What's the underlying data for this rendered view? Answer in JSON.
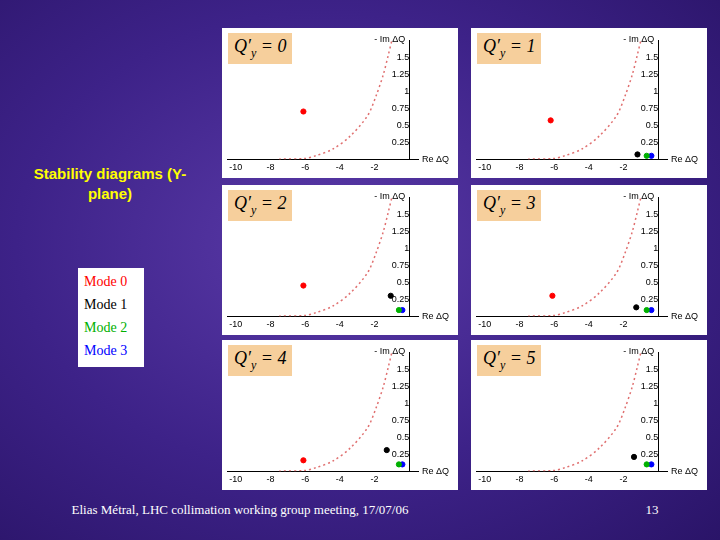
{
  "title": "Stability diagrams (Y-plane)",
  "footer": "Elias Métral, LHC collimation working group meeting, 17/07/06",
  "page_number": 13,
  "chart_data": [
    {
      "type": "scatter",
      "title": "Q′y = 0",
      "xlabel": "Re ΔQ",
      "ylabel": "- Im ΔQ",
      "xlim": [
        -10.5,
        0.5
      ],
      "ylim": [
        0,
        1.75
      ],
      "xticks": [
        -10,
        -8,
        -6,
        -4,
        -2
      ],
      "yticks": [
        0.25,
        0.5,
        0.75,
        1,
        1.25,
        1.5
      ],
      "grid": false,
      "series": [
        {
          "name": "Mode 0",
          "color": "#ff0000",
          "marker": "circle",
          "x": [
            -6.1
          ],
          "values": [
            0.7
          ]
        },
        {
          "name": "Mode 1",
          "color": "#000000",
          "marker": "circle",
          "x": [],
          "values": []
        },
        {
          "name": "Mode 2",
          "color": "#00b000",
          "marker": "circle",
          "x": [],
          "values": []
        },
        {
          "name": "Mode 3",
          "color": "#0000ff",
          "marker": "circle",
          "x": [],
          "values": []
        }
      ],
      "stability_curve": {
        "color": "#e07070",
        "line_style": "dotted",
        "x": [
          -7.5,
          -6,
          -5.4,
          -4.4,
          -3.4,
          -2.4,
          -1.9,
          -1.5,
          -1.2,
          -1.0
        ],
        "values": [
          0,
          0.01,
          0.05,
          0.15,
          0.34,
          0.64,
          0.94,
          1.24,
          1.54,
          1.75
        ]
      }
    },
    {
      "type": "scatter",
      "title": "Q′y = 1",
      "xlabel": "Re ΔQ",
      "ylabel": "- Im ΔQ",
      "xlim": [
        -10.5,
        0.5
      ],
      "ylim": [
        0,
        1.75
      ],
      "xticks": [
        -10,
        -8,
        -6,
        -4,
        -2
      ],
      "yticks": [
        0.25,
        0.5,
        0.75,
        1,
        1.25,
        1.5
      ],
      "grid": false,
      "series": [
        {
          "name": "Mode 0",
          "color": "#ff0000",
          "marker": "circle",
          "x": [
            -6.2
          ],
          "values": [
            0.57
          ]
        },
        {
          "name": "Mode 1",
          "color": "#000000",
          "marker": "circle",
          "x": [
            -1.2
          ],
          "values": [
            0.07
          ]
        },
        {
          "name": "Mode 2",
          "color": "#00b000",
          "marker": "circle",
          "x": [
            -0.67
          ],
          "values": [
            0.05
          ]
        },
        {
          "name": "Mode 3",
          "color": "#0000ff",
          "marker": "circle",
          "x": [
            -0.4
          ],
          "values": [
            0.05
          ]
        }
      ],
      "stability_curve": {
        "color": "#e07070",
        "line_style": "dotted",
        "x": [
          -7.5,
          -6,
          -5.4,
          -4.4,
          -3.4,
          -2.4,
          -1.9,
          -1.5,
          -1.2,
          -1.0
        ],
        "values": [
          0,
          0.01,
          0.05,
          0.15,
          0.34,
          0.64,
          0.94,
          1.24,
          1.54,
          1.75
        ]
      }
    },
    {
      "type": "scatter",
      "title": "Q′y = 2",
      "xlabel": "Re ΔQ",
      "ylabel": "- Im ΔQ",
      "xlim": [
        -10.5,
        0.5
      ],
      "ylim": [
        0,
        1.75
      ],
      "xticks": [
        -10,
        -8,
        -6,
        -4,
        -2
      ],
      "yticks": [
        0.25,
        0.5,
        0.75,
        1,
        1.25,
        1.5
      ],
      "grid": false,
      "series": [
        {
          "name": "Mode 0",
          "color": "#ff0000",
          "marker": "circle",
          "x": [
            -6.1
          ],
          "values": [
            0.45
          ]
        },
        {
          "name": "Mode 1",
          "color": "#000000",
          "marker": "circle",
          "x": [
            -1.07
          ],
          "values": [
            0.3
          ]
        },
        {
          "name": "Mode 2",
          "color": "#00b000",
          "marker": "circle",
          "x": [
            -0.6
          ],
          "values": [
            0.09
          ]
        },
        {
          "name": "Mode 3",
          "color": "#0000ff",
          "marker": "circle",
          "x": [
            -0.4
          ],
          "values": [
            0.09
          ]
        }
      ],
      "stability_curve": {
        "color": "#e07070",
        "line_style": "dotted",
        "x": [
          -7.5,
          -6,
          -5.4,
          -4.4,
          -3.4,
          -2.4,
          -1.9,
          -1.5,
          -1.2,
          -1.0
        ],
        "values": [
          0,
          0.01,
          0.05,
          0.15,
          0.34,
          0.64,
          0.94,
          1.24,
          1.54,
          1.75
        ]
      }
    },
    {
      "type": "scatter",
      "title": "Q′y = 3",
      "xlabel": "Re ΔQ",
      "ylabel": "- Im ΔQ",
      "xlim": [
        -10.5,
        0.5
      ],
      "ylim": [
        0,
        1.75
      ],
      "xticks": [
        -10,
        -8,
        -6,
        -4,
        -2
      ],
      "yticks": [
        0.25,
        0.5,
        0.75,
        1,
        1.25,
        1.5
      ],
      "grid": false,
      "series": [
        {
          "name": "Mode 0",
          "color": "#ff0000",
          "marker": "circle",
          "x": [
            -6.1
          ],
          "values": [
            0.3
          ]
        },
        {
          "name": "Mode 1",
          "color": "#000000",
          "marker": "circle",
          "x": [
            -1.27
          ],
          "values": [
            0.13
          ]
        },
        {
          "name": "Mode 2",
          "color": "#00b000",
          "marker": "circle",
          "x": [
            -0.67
          ],
          "values": [
            0.09
          ]
        },
        {
          "name": "Mode 3",
          "color": "#0000ff",
          "marker": "circle",
          "x": [
            -0.4
          ],
          "values": [
            0.09
          ]
        }
      ],
      "stability_curve": {
        "color": "#e07070",
        "line_style": "dotted",
        "x": [
          -7.5,
          -6,
          -5.4,
          -4.4,
          -3.4,
          -2.4,
          -1.9,
          -1.5,
          -1.2,
          -1.0
        ],
        "values": [
          0,
          0.01,
          0.05,
          0.15,
          0.34,
          0.64,
          0.94,
          1.24,
          1.54,
          1.75
        ]
      }
    },
    {
      "type": "scatter",
      "title": "Q′y = 4",
      "xlabel": "Re ΔQ",
      "ylabel": "- Im ΔQ",
      "xlim": [
        -10.5,
        0.5
      ],
      "ylim": [
        0,
        1.75
      ],
      "xticks": [
        -10,
        -8,
        -6,
        -4,
        -2
      ],
      "yticks": [
        0.25,
        0.5,
        0.75,
        1,
        1.25,
        1.5
      ],
      "grid": false,
      "series": [
        {
          "name": "Mode 0",
          "color": "#ff0000",
          "marker": "circle",
          "x": [
            -6.1
          ],
          "values": [
            0.16
          ]
        },
        {
          "name": "Mode 1",
          "color": "#000000",
          "marker": "circle",
          "x": [
            -1.3
          ],
          "values": [
            0.31
          ]
        },
        {
          "name": "Mode 2",
          "color": "#00b000",
          "marker": "circle",
          "x": [
            -0.6
          ],
          "values": [
            0.1
          ]
        },
        {
          "name": "Mode 3",
          "color": "#0000ff",
          "marker": "circle",
          "x": [
            -0.4
          ],
          "values": [
            0.1
          ]
        }
      ],
      "stability_curve": {
        "color": "#e07070",
        "line_style": "dotted",
        "x": [
          -7.5,
          -6,
          -5.4,
          -4.4,
          -3.4,
          -2.4,
          -1.9,
          -1.5,
          -1.2,
          -1.0
        ],
        "values": [
          0,
          0.01,
          0.05,
          0.15,
          0.34,
          0.64,
          0.94,
          1.24,
          1.54,
          1.75
        ]
      }
    },
    {
      "type": "scatter",
      "title": "Q′y = 5",
      "xlabel": "Re ΔQ",
      "ylabel": "- Im ΔQ",
      "xlim": [
        -10.5,
        0.5
      ],
      "ylim": [
        0,
        1.75
      ],
      "xticks": [
        -10,
        -8,
        -6,
        -4,
        -2
      ],
      "yticks": [
        0.25,
        0.5,
        0.75,
        1,
        1.25,
        1.5
      ],
      "grid": false,
      "series": [
        {
          "name": "Mode 0",
          "color": "#ff0000",
          "marker": "circle",
          "x": [],
          "values": []
        },
        {
          "name": "Mode 1",
          "color": "#000000",
          "marker": "circle",
          "x": [
            -1.4
          ],
          "values": [
            0.21
          ]
        },
        {
          "name": "Mode 2",
          "color": "#00b000",
          "marker": "circle",
          "x": [
            -0.67
          ],
          "values": [
            0.1
          ]
        },
        {
          "name": "Mode 3",
          "color": "#0000ff",
          "marker": "circle",
          "x": [
            -0.4
          ],
          "values": [
            0.1
          ]
        }
      ],
      "stability_curve": {
        "color": "#e07070",
        "line_style": "dotted",
        "x": [
          -7.5,
          -6,
          -5.4,
          -4.4,
          -3.4,
          -2.4,
          -1.9,
          -1.5,
          -1.2,
          -1.0
        ],
        "values": [
          0,
          0.01,
          0.05,
          0.15,
          0.34,
          0.64,
          0.94,
          1.24,
          1.54,
          1.75
        ]
      }
    }
  ]
}
